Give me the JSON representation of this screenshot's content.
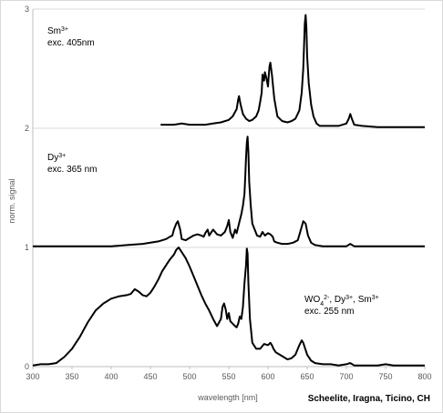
{
  "chart_data": {
    "type": "line",
    "title": "",
    "xlabel": "wavelength [nm]",
    "ylabel": "norm. signal",
    "xlim": [
      300,
      800
    ],
    "ylim": [
      0,
      3
    ],
    "x_ticks": [
      "300",
      "350",
      "400",
      "450",
      "500",
      "550",
      "600",
      "650",
      "700",
      "750",
      "800"
    ],
    "y_ticks": [
      "0",
      "1",
      "2",
      "3"
    ],
    "grid": "horizontal",
    "caption": "Scheelite, Iragna, Ticino, CH",
    "colors": {
      "line": "#000000",
      "grid": "#d9d9d9",
      "axis": "#bfbfbf",
      "tick_text": "#595959"
    },
    "annotations": [
      {
        "id": "sm",
        "lines": [
          {
            "base": "Sm",
            "sup": "3+"
          },
          {
            "text": "exc. 405nm"
          }
        ]
      },
      {
        "id": "dy",
        "lines": [
          {
            "base": "Dy",
            "sup": "3+"
          },
          {
            "text": "exc. 365 nm"
          }
        ]
      },
      {
        "id": "mix",
        "lines": [
          {
            "parts": [
              {
                "base": "WO",
                "sub": "4",
                "sup": "2-"
              },
              {
                "text": ", "
              },
              {
                "base": "Dy",
                "sup": "3+"
              },
              {
                "text": ", "
              },
              {
                "base": "Sm",
                "sup": "3+"
              }
            ]
          },
          {
            "text": "exc. 255 nm"
          }
        ]
      }
    ],
    "series": [
      {
        "x": [
          300,
          310,
          320,
          330,
          340,
          350,
          360,
          370,
          380,
          390,
          400,
          410,
          420,
          425,
          430,
          435,
          440,
          445,
          450,
          455,
          460,
          465,
          470,
          475,
          480,
          483,
          486,
          488,
          490,
          495,
          500,
          505,
          510,
          515,
          520,
          525,
          530,
          535,
          540,
          542,
          544,
          546,
          548,
          550,
          552,
          555,
          558,
          560,
          562,
          564,
          566,
          568,
          570,
          572,
          573,
          574,
          575,
          577,
          580,
          585,
          590,
          595,
          600,
          603,
          605,
          607,
          610,
          615,
          620,
          625,
          630,
          635,
          640,
          643,
          645,
          647,
          650,
          655,
          660,
          670,
          680,
          690,
          700,
          705,
          710,
          720,
          730,
          740,
          750,
          760,
          780,
          800
        ],
        "values": [
          0.01,
          0.02,
          0.02,
          0.03,
          0.08,
          0.15,
          0.25,
          0.37,
          0.47,
          0.53,
          0.57,
          0.59,
          0.6,
          0.61,
          0.65,
          0.63,
          0.6,
          0.59,
          0.62,
          0.67,
          0.73,
          0.8,
          0.85,
          0.9,
          0.94,
          0.98,
          1.0,
          0.98,
          0.96,
          0.91,
          0.84,
          0.76,
          0.68,
          0.6,
          0.53,
          0.47,
          0.4,
          0.34,
          0.4,
          0.5,
          0.53,
          0.48,
          0.4,
          0.45,
          0.38,
          0.36,
          0.34,
          0.33,
          0.36,
          0.42,
          0.4,
          0.5,
          0.7,
          0.85,
          0.99,
          0.95,
          0.7,
          0.4,
          0.2,
          0.15,
          0.15,
          0.19,
          0.18,
          0.2,
          0.18,
          0.15,
          0.12,
          0.1,
          0.08,
          0.06,
          0.07,
          0.1,
          0.18,
          0.22,
          0.2,
          0.16,
          0.1,
          0.05,
          0.03,
          0.02,
          0.02,
          0.01,
          0.02,
          0.03,
          0.01,
          0.01,
          0.01,
          0.01,
          0.02,
          0.01,
          0.01,
          0.01
        ],
        "offset": 0
      },
      {
        "x": [
          300,
          320,
          340,
          360,
          380,
          400,
          420,
          440,
          460,
          470,
          475,
          478,
          480,
          483,
          485,
          488,
          490,
          495,
          500,
          505,
          510,
          515,
          518,
          520,
          523,
          525,
          530,
          535,
          540,
          545,
          548,
          550,
          552,
          555,
          558,
          560,
          563,
          566,
          568,
          570,
          571,
          572,
          573,
          574,
          575,
          576,
          578,
          580,
          583,
          586,
          590,
          593,
          596,
          600,
          603,
          606,
          608,
          612,
          618,
          625,
          632,
          638,
          642,
          645,
          648,
          651,
          655,
          660,
          670,
          680,
          690,
          700,
          705,
          710,
          720,
          740,
          760,
          780,
          800
        ],
        "values": [
          0.01,
          0.01,
          0.01,
          0.01,
          0.01,
          0.01,
          0.02,
          0.03,
          0.05,
          0.07,
          0.09,
          0.1,
          0.15,
          0.2,
          0.22,
          0.15,
          0.07,
          0.06,
          0.08,
          0.1,
          0.11,
          0.1,
          0.09,
          0.12,
          0.15,
          0.1,
          0.15,
          0.11,
          0.1,
          0.13,
          0.18,
          0.23,
          0.13,
          0.08,
          0.15,
          0.12,
          0.2,
          0.28,
          0.35,
          0.45,
          0.6,
          0.75,
          0.88,
          0.93,
          0.8,
          0.55,
          0.35,
          0.2,
          0.15,
          0.1,
          0.09,
          0.13,
          0.1,
          0.12,
          0.11,
          0.09,
          0.05,
          0.04,
          0.03,
          0.03,
          0.04,
          0.06,
          0.15,
          0.22,
          0.2,
          0.1,
          0.04,
          0.02,
          0.01,
          0.01,
          0.01,
          0.01,
          0.03,
          0.01,
          0.01,
          0.01,
          0.01,
          0.01,
          0.01
        ],
        "offset": 1
      },
      {
        "x": [
          463,
          470,
          480,
          490,
          500,
          510,
          520,
          530,
          540,
          550,
          555,
          560,
          562,
          563,
          565,
          568,
          572,
          576,
          580,
          585,
          588,
          590,
          592,
          593,
          595,
          596,
          598,
          600,
          601,
          602,
          603,
          605,
          608,
          612,
          618,
          625,
          630,
          635,
          640,
          643,
          645,
          646,
          647,
          648,
          649,
          650,
          652,
          655,
          658,
          662,
          666,
          670,
          680,
          690,
          700,
          703,
          705,
          707,
          710,
          720,
          740,
          760,
          780,
          800
        ],
        "values": [
          0.03,
          0.03,
          0.03,
          0.04,
          0.03,
          0.03,
          0.03,
          0.04,
          0.05,
          0.07,
          0.1,
          0.16,
          0.24,
          0.27,
          0.2,
          0.12,
          0.08,
          0.06,
          0.07,
          0.1,
          0.15,
          0.22,
          0.3,
          0.45,
          0.4,
          0.47,
          0.42,
          0.35,
          0.45,
          0.52,
          0.55,
          0.45,
          0.25,
          0.1,
          0.06,
          0.05,
          0.06,
          0.08,
          0.15,
          0.3,
          0.5,
          0.7,
          0.88,
          0.95,
          0.85,
          0.6,
          0.38,
          0.2,
          0.1,
          0.04,
          0.02,
          0.02,
          0.02,
          0.02,
          0.04,
          0.08,
          0.12,
          0.08,
          0.03,
          0.02,
          0.01,
          0.01,
          0.01,
          0.01
        ],
        "offset": 2
      }
    ]
  }
}
